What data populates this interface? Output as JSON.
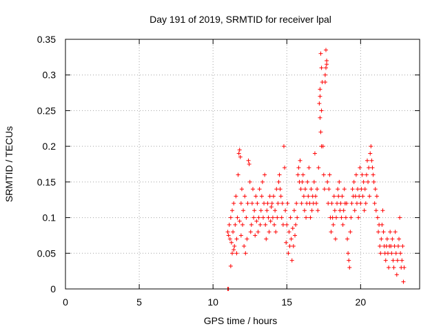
{
  "chart_data": {
    "type": "scatter",
    "title": "Day 191 of 2019, SRMTID for receiver lpal",
    "xlabel": "GPS time / hours",
    "ylabel": "SRMTID / TECUs",
    "xlim": [
      0,
      24
    ],
    "ylim": [
      0,
      0.35
    ],
    "xticks": [
      0,
      5,
      10,
      15,
      20
    ],
    "xtick_labels": [
      "0",
      "5",
      "10",
      "15",
      "20"
    ],
    "yticks": [
      0,
      0.05,
      0.1,
      0.15,
      0.2,
      0.25,
      0.3,
      0.35
    ],
    "ytick_labels": [
      "0",
      "0.05",
      "0.1",
      "0.15",
      "0.2",
      "0.25",
      "0.3",
      "0.35"
    ],
    "grid": true,
    "marker": "+",
    "color": "#ff0000",
    "series": [
      {
        "name": "SRMTID",
        "points": [
          [
            11.0,
            0.0
          ],
          [
            11.05,
            0.0
          ],
          [
            11.0,
            0.08
          ],
          [
            11.05,
            0.075
          ],
          [
            11.1,
            0.09
          ],
          [
            11.15,
            0.07
          ],
          [
            11.2,
            0.1
          ],
          [
            11.25,
            0.065
          ],
          [
            11.3,
            0.11
          ],
          [
            11.35,
            0.08
          ],
          [
            11.4,
            0.12
          ],
          [
            11.45,
            0.06
          ],
          [
            11.5,
            0.09
          ],
          [
            11.55,
            0.13
          ],
          [
            11.6,
            0.07
          ],
          [
            11.65,
            0.1
          ],
          [
            11.7,
            0.16
          ],
          [
            11.75,
            0.19
          ],
          [
            11.8,
            0.195
          ],
          [
            11.85,
            0.185
          ],
          [
            11.9,
            0.12
          ],
          [
            11.95,
            0.14
          ],
          [
            11.2,
            0.032
          ],
          [
            11.3,
            0.05
          ],
          [
            11.4,
            0.055
          ],
          [
            11.6,
            0.05
          ],
          [
            11.8,
            0.095
          ],
          [
            11.9,
            0.075
          ],
          [
            12.0,
            0.09
          ],
          [
            12.05,
            0.11
          ],
          [
            12.1,
            0.06
          ],
          [
            12.15,
            0.13
          ],
          [
            12.2,
            0.05
          ],
          [
            12.25,
            0.1
          ],
          [
            12.3,
            0.07
          ],
          [
            12.35,
            0.12
          ],
          [
            12.4,
            0.18
          ],
          [
            12.45,
            0.175
          ],
          [
            12.5,
            0.15
          ],
          [
            12.55,
            0.08
          ],
          [
            12.6,
            0.09
          ],
          [
            12.65,
            0.12
          ],
          [
            12.7,
            0.14
          ],
          [
            12.75,
            0.1
          ],
          [
            12.8,
            0.11
          ],
          [
            12.85,
            0.075
          ],
          [
            12.9,
            0.13
          ],
          [
            12.95,
            0.095
          ],
          [
            13.0,
            0.12
          ],
          [
            13.05,
            0.08
          ],
          [
            13.1,
            0.1
          ],
          [
            13.15,
            0.14
          ],
          [
            13.2,
            0.09
          ],
          [
            13.25,
            0.11
          ],
          [
            13.3,
            0.13
          ],
          [
            13.35,
            0.15
          ],
          [
            13.4,
            0.1
          ],
          [
            13.45,
            0.12
          ],
          [
            13.5,
            0.16
          ],
          [
            13.55,
            0.09
          ],
          [
            13.6,
            0.07
          ],
          [
            13.65,
            0.11
          ],
          [
            13.7,
            0.12
          ],
          [
            13.75,
            0.1
          ],
          [
            13.8,
            0.08
          ],
          [
            13.85,
            0.13
          ],
          [
            13.9,
            0.095
          ],
          [
            13.95,
            0.115
          ],
          [
            14.0,
            0.12
          ],
          [
            14.05,
            0.1
          ],
          [
            14.1,
            0.13
          ],
          [
            14.15,
            0.09
          ],
          [
            14.2,
            0.11
          ],
          [
            14.25,
            0.08
          ],
          [
            14.3,
            0.14
          ],
          [
            14.35,
            0.1
          ],
          [
            14.4,
            0.12
          ],
          [
            14.45,
            0.15
          ],
          [
            14.5,
            0.16
          ],
          [
            14.55,
            0.14
          ],
          [
            14.6,
            0.13
          ],
          [
            14.65,
            0.1
          ],
          [
            14.7,
            0.12
          ],
          [
            14.75,
            0.09
          ],
          [
            14.8,
            0.2
          ],
          [
            14.85,
            0.17
          ],
          [
            14.9,
            0.11
          ],
          [
            14.95,
            0.065
          ],
          [
            15.0,
            0.09
          ],
          [
            15.05,
            0.12
          ],
          [
            15.1,
            0.05
          ],
          [
            15.15,
            0.08
          ],
          [
            15.2,
            0.06
          ],
          [
            15.25,
            0.1
          ],
          [
            15.3,
            0.07
          ],
          [
            15.35,
            0.04
          ],
          [
            15.4,
            0.085
          ],
          [
            15.45,
            0.06
          ],
          [
            15.5,
            0.11
          ],
          [
            15.55,
            0.075
          ],
          [
            15.6,
            0.09
          ],
          [
            15.65,
            0.12
          ],
          [
            15.7,
            0.1
          ],
          [
            15.75,
            0.16
          ],
          [
            15.8,
            0.17
          ],
          [
            15.85,
            0.15
          ],
          [
            15.9,
            0.18
          ],
          [
            15.95,
            0.14
          ],
          [
            16.0,
            0.12
          ],
          [
            16.05,
            0.15
          ],
          [
            16.1,
            0.16
          ],
          [
            16.15,
            0.13
          ],
          [
            16.2,
            0.11
          ],
          [
            16.25,
            0.14
          ],
          [
            16.3,
            0.1
          ],
          [
            16.35,
            0.12
          ],
          [
            16.4,
            0.15
          ],
          [
            16.45,
            0.13
          ],
          [
            16.5,
            0.17
          ],
          [
            16.55,
            0.12
          ],
          [
            16.6,
            0.1
          ],
          [
            16.65,
            0.14
          ],
          [
            16.7,
            0.11
          ],
          [
            16.75,
            0.13
          ],
          [
            16.8,
            0.12
          ],
          [
            16.85,
            0.15
          ],
          [
            16.9,
            0.19
          ],
          [
            16.95,
            0.13
          ],
          [
            17.0,
            0.12
          ],
          [
            17.05,
            0.14
          ],
          [
            17.1,
            0.11
          ],
          [
            17.15,
            0.17
          ],
          [
            17.2,
            0.26
          ],
          [
            17.25,
            0.28
          ],
          [
            17.3,
            0.33
          ],
          [
            17.35,
            0.31
          ],
          [
            17.4,
            0.29
          ],
          [
            17.45,
            0.2
          ],
          [
            17.5,
            0.16
          ],
          [
            17.55,
            0.14
          ],
          [
            17.6,
            0.29
          ],
          [
            17.65,
            0.335
          ],
          [
            17.7,
            0.315
          ],
          [
            17.75,
            0.15
          ],
          [
            17.8,
            0.12
          ],
          [
            17.85,
            0.14
          ],
          [
            17.9,
            0.16
          ],
          [
            17.95,
            0.1
          ],
          [
            17.25,
            0.24
          ],
          [
            17.3,
            0.22
          ],
          [
            17.35,
            0.2
          ],
          [
            17.6,
            0.3
          ],
          [
            17.65,
            0.31
          ],
          [
            17.7,
            0.32
          ],
          [
            17.25,
            0.27
          ],
          [
            17.35,
            0.25
          ],
          [
            18.0,
            0.08
          ],
          [
            18.05,
            0.12
          ],
          [
            18.1,
            0.1
          ],
          [
            18.15,
            0.09
          ],
          [
            18.2,
            0.13
          ],
          [
            18.25,
            0.11
          ],
          [
            18.3,
            0.07
          ],
          [
            18.35,
            0.1
          ],
          [
            18.4,
            0.12
          ],
          [
            18.45,
            0.14
          ],
          [
            18.5,
            0.13
          ],
          [
            18.55,
            0.15
          ],
          [
            18.6,
            0.11
          ],
          [
            18.65,
            0.12
          ],
          [
            18.7,
            0.1
          ],
          [
            18.75,
            0.13
          ],
          [
            18.8,
            0.09
          ],
          [
            18.85,
            0.11
          ],
          [
            18.9,
            0.14
          ],
          [
            18.95,
            0.12
          ],
          [
            19.0,
            0.1
          ],
          [
            19.05,
            0.12
          ],
          [
            19.1,
            0.07
          ],
          [
            19.15,
            0.05
          ],
          [
            19.2,
            0.04
          ],
          [
            19.25,
            0.03
          ],
          [
            19.3,
            0.08
          ],
          [
            19.35,
            0.1
          ],
          [
            19.4,
            0.12
          ],
          [
            19.45,
            0.14
          ],
          [
            19.5,
            0.13
          ],
          [
            19.55,
            0.15
          ],
          [
            19.6,
            0.11
          ],
          [
            19.65,
            0.13
          ],
          [
            19.7,
            0.16
          ],
          [
            19.75,
            0.12
          ],
          [
            19.8,
            0.14
          ],
          [
            19.85,
            0.1
          ],
          [
            19.9,
            0.13
          ],
          [
            19.95,
            0.17
          ],
          [
            20.0,
            0.12
          ],
          [
            20.05,
            0.14
          ],
          [
            20.1,
            0.16
          ],
          [
            20.15,
            0.13
          ],
          [
            20.2,
            0.15
          ],
          [
            20.25,
            0.11
          ],
          [
            20.3,
            0.14
          ],
          [
            20.35,
            0.12
          ],
          [
            20.4,
            0.16
          ],
          [
            20.45,
            0.18
          ],
          [
            20.5,
            0.15
          ],
          [
            20.55,
            0.17
          ],
          [
            20.6,
            0.13
          ],
          [
            20.65,
            0.19
          ],
          [
            20.7,
            0.2
          ],
          [
            20.75,
            0.18
          ],
          [
            20.8,
            0.17
          ],
          [
            20.85,
            0.16
          ],
          [
            20.9,
            0.15
          ],
          [
            20.95,
            0.12
          ],
          [
            21.0,
            0.14
          ],
          [
            21.05,
            0.11
          ],
          [
            21.1,
            0.13
          ],
          [
            21.15,
            0.1
          ],
          [
            21.2,
            0.08
          ],
          [
            21.25,
            0.09
          ],
          [
            21.3,
            0.06
          ],
          [
            21.35,
            0.05
          ],
          [
            21.4,
            0.07
          ],
          [
            21.45,
            0.09
          ],
          [
            21.5,
            0.11
          ],
          [
            21.55,
            0.08
          ],
          [
            21.6,
            0.06
          ],
          [
            21.65,
            0.05
          ],
          [
            21.7,
            0.04
          ],
          [
            21.75,
            0.06
          ],
          [
            21.8,
            0.07
          ],
          [
            21.85,
            0.05
          ],
          [
            21.9,
            0.03
          ],
          [
            21.95,
            0.06
          ],
          [
            22.0,
            0.08
          ],
          [
            22.05,
            0.06
          ],
          [
            22.1,
            0.05
          ],
          [
            22.15,
            0.07
          ],
          [
            22.2,
            0.04
          ],
          [
            22.25,
            0.03
          ],
          [
            22.3,
            0.06
          ],
          [
            22.35,
            0.08
          ],
          [
            22.4,
            0.05
          ],
          [
            22.45,
            0.02
          ],
          [
            22.5,
            0.04
          ],
          [
            22.55,
            0.06
          ],
          [
            22.6,
            0.07
          ],
          [
            22.65,
            0.1
          ],
          [
            22.7,
            0.05
          ],
          [
            22.75,
            0.03
          ],
          [
            22.8,
            0.04
          ],
          [
            22.85,
            0.06
          ],
          [
            22.9,
            0.01
          ],
          [
            22.95,
            0.03
          ]
        ]
      }
    ]
  }
}
